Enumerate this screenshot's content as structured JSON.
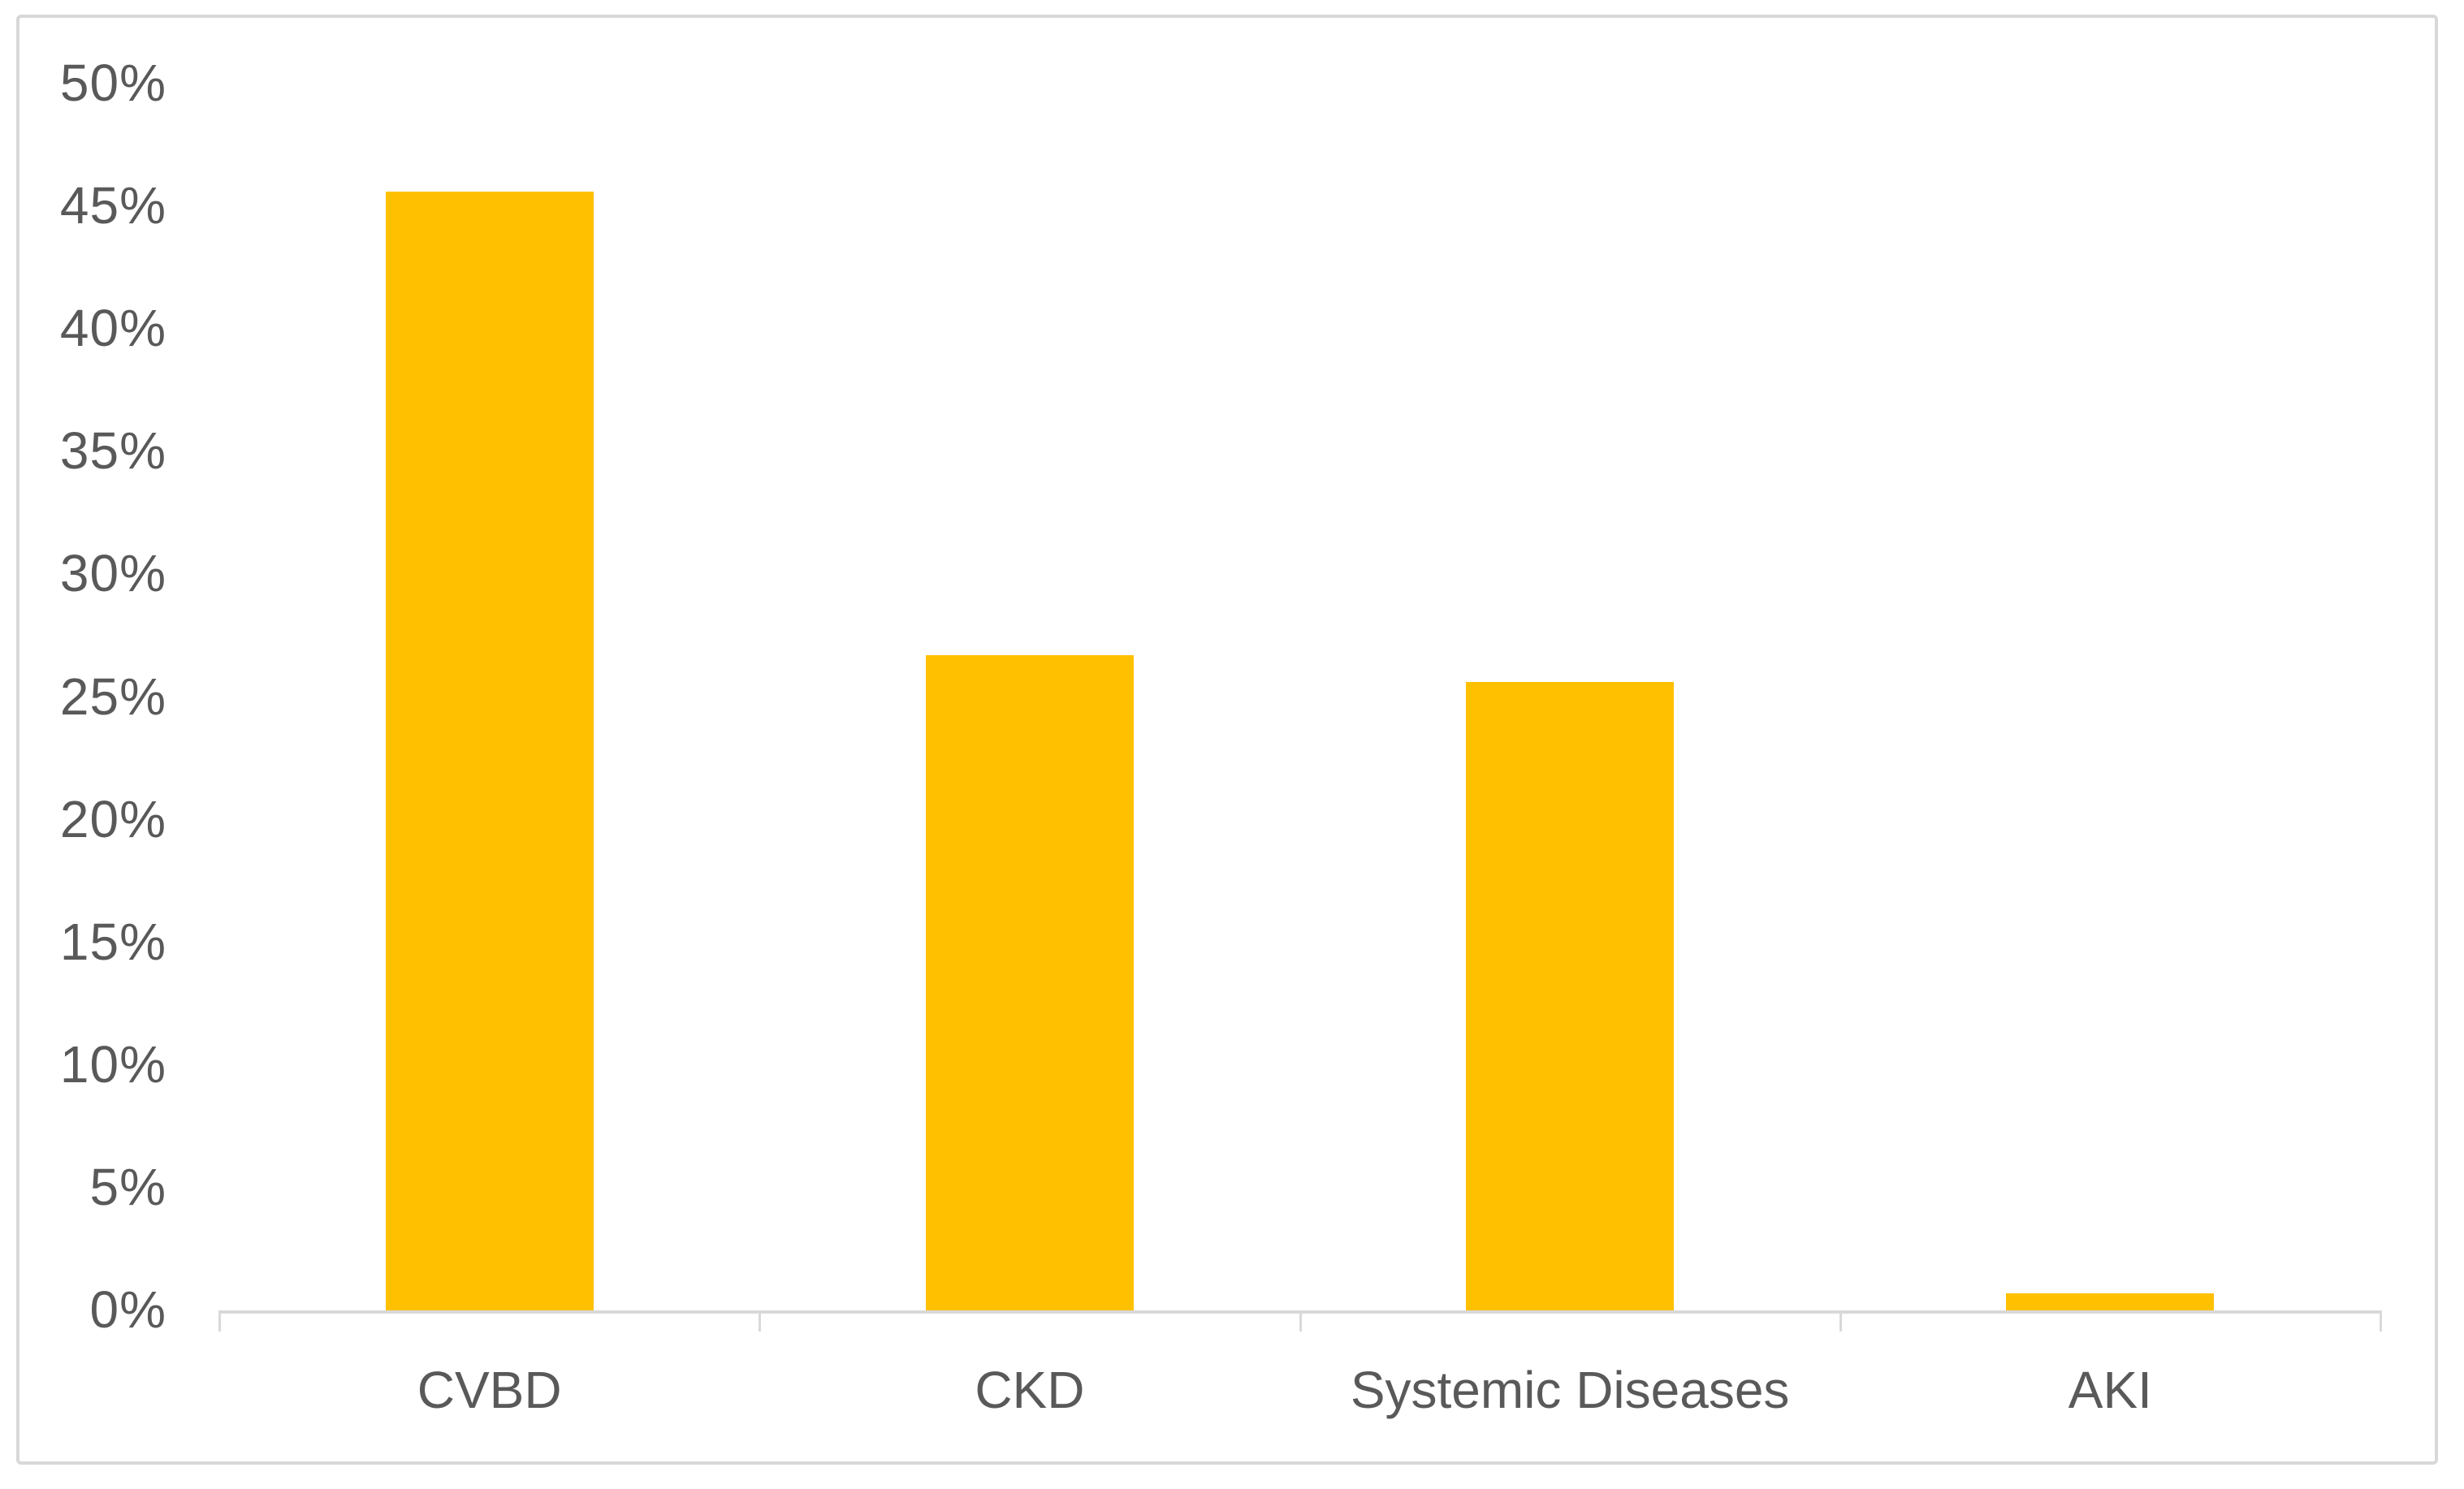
{
  "chart_data": {
    "type": "bar",
    "categories": [
      "CVBD",
      "CKD",
      "Systemic Diseases",
      "AKI"
    ],
    "values": [
      45.6,
      26.7,
      25.6,
      0.7
    ],
    "title": "",
    "xlabel": "",
    "ylabel": "",
    "ylim": [
      0,
      50
    ],
    "ytick_step": 5,
    "y_ticks": [
      "0%",
      "5%",
      "10%",
      "15%",
      "20%",
      "25%",
      "30%",
      "35%",
      "40%",
      "45%",
      "50%"
    ],
    "grid": false,
    "legend": false,
    "legend_position": "none",
    "colors": {
      "bar": "#FFC000",
      "axis": "#D9D9D9",
      "tick_label": "#595959",
      "frame_border": "#D8D8D8",
      "background": "#FFFFFF"
    }
  }
}
